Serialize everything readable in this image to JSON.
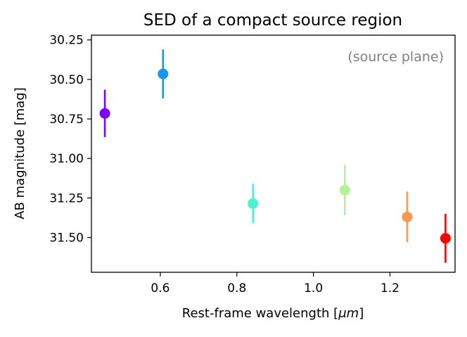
{
  "chart_data": {
    "type": "scatter",
    "title": "SED of a compact source region",
    "xlabel_prefix": "Rest-frame wavelength [",
    "xlabel_unit": "μm",
    "xlabel_suffix": "]",
    "ylabel": "AB magnitude [mag]",
    "annotation": "(source plane)",
    "annotation_color": "#808080",
    "xlim": [
      0.42,
      1.37
    ],
    "ylim": [
      31.72,
      30.22
    ],
    "y_inverted": true,
    "xticks": [
      0.6,
      0.8,
      1.0,
      1.2
    ],
    "xtick_labels": [
      "0.6",
      "0.8",
      "1.0",
      "1.2"
    ],
    "yticks": [
      30.25,
      30.5,
      30.75,
      31.0,
      31.25,
      31.5
    ],
    "ytick_labels": [
      "30.25",
      "30.50",
      "30.75",
      "31.00",
      "31.25",
      "31.50"
    ],
    "points": [
      {
        "x": 0.455,
        "y": 30.715,
        "yerr": 0.15,
        "color": "#8000ff"
      },
      {
        "x": 0.607,
        "y": 30.465,
        "yerr": 0.155,
        "color": "#1996f3"
      },
      {
        "x": 0.842,
        "y": 31.285,
        "yerr": 0.125,
        "color": "#4df3ce"
      },
      {
        "x": 1.082,
        "y": 31.2,
        "yerr": 0.16,
        "color": "#b2f396"
      },
      {
        "x": 1.245,
        "y": 31.37,
        "yerr": 0.16,
        "color": "#ff964f"
      },
      {
        "x": 1.345,
        "y": 31.505,
        "yerr": 0.155,
        "color": "#ff0000"
      }
    ]
  }
}
